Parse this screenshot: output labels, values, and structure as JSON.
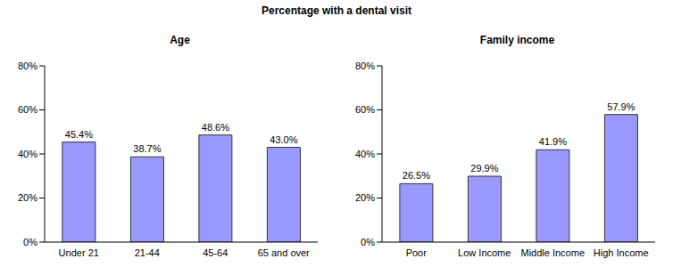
{
  "title": "Percentage with a dental visit",
  "chart_data": [
    {
      "type": "bar",
      "title": "Age",
      "categories": [
        "Under 21",
        "21-44",
        "45-64",
        "65 and over"
      ],
      "values": [
        45.4,
        38.7,
        48.6,
        43.0
      ],
      "value_labels": [
        "45.4%",
        "38.7%",
        "48.6%",
        "43.0%"
      ],
      "color": "#9999ff",
      "ylim": [
        0,
        80
      ],
      "yticks": [
        {
          "value": 0,
          "label": "0%"
        },
        {
          "value": 20,
          "label": "20%"
        },
        {
          "value": 40,
          "label": "40%"
        },
        {
          "value": 60,
          "label": "60%"
        },
        {
          "value": 80,
          "label": "80%"
        }
      ],
      "grid": false,
      "data_labels": true
    },
    {
      "type": "bar",
      "title": "Family income",
      "categories": [
        "Poor",
        "Low Income",
        "Middle Income",
        "High Income"
      ],
      "values": [
        26.5,
        29.9,
        41.9,
        57.9
      ],
      "value_labels": [
        "26.5%",
        "29.9%",
        "41.9%",
        "57.9%"
      ],
      "color": "#9999ff",
      "ylim": [
        0,
        80
      ],
      "yticks": [
        {
          "value": 0,
          "label": "0%"
        },
        {
          "value": 20,
          "label": "20%"
        },
        {
          "value": 40,
          "label": "40%"
        },
        {
          "value": 60,
          "label": "60%"
        },
        {
          "value": 80,
          "label": "80%"
        }
      ],
      "grid": false,
      "data_labels": true
    }
  ]
}
